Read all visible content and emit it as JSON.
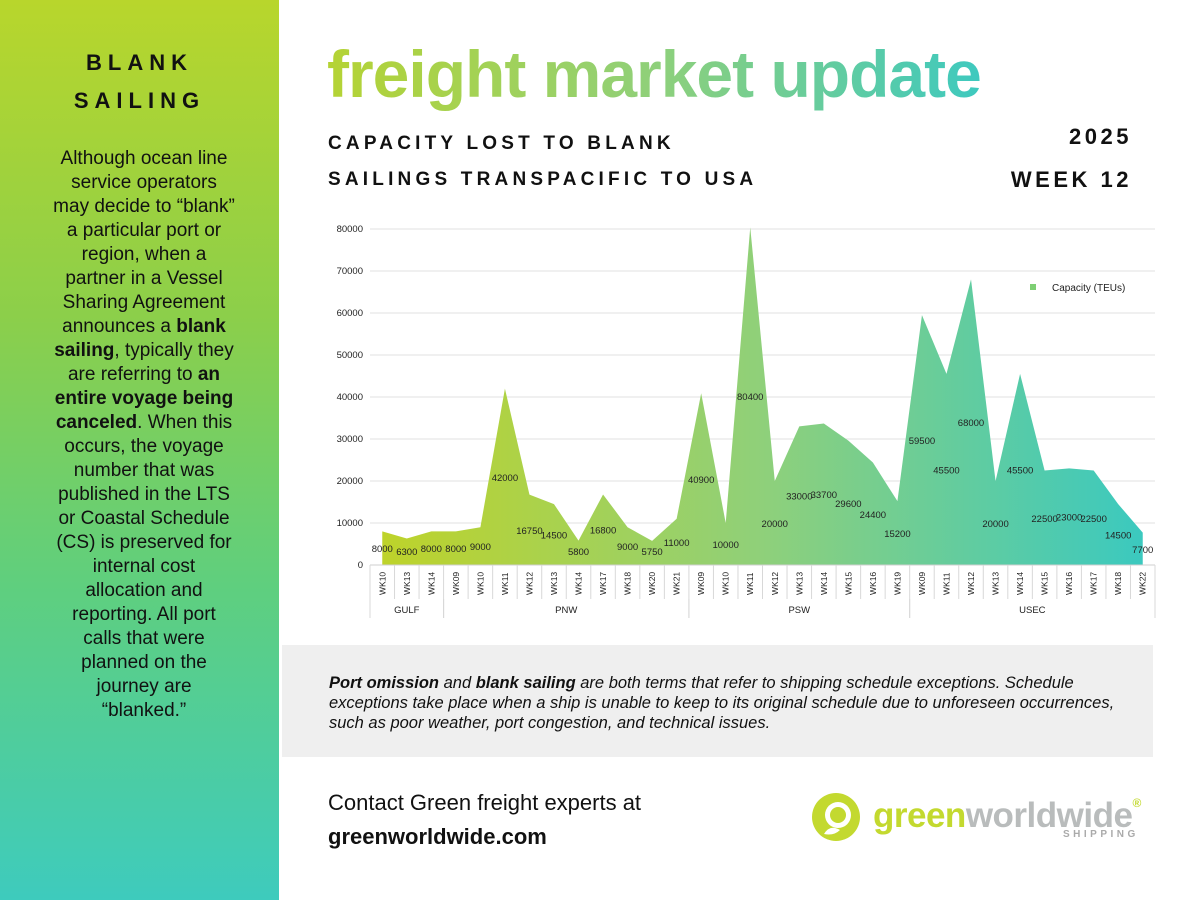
{
  "sidebar": {
    "title_line1": "BLANK",
    "title_line2": "SAILING",
    "body": [
      {
        "text": "Although ocean line service operators may decide to “blank” a particular port or region, when a partner in a Vessel Sharing Agreement announces a ",
        "bold": false
      },
      {
        "text": "blank sailing",
        "bold": true
      },
      {
        "text": ", typically they are referring to ",
        "bold": false
      },
      {
        "text": "an entire voyage being canceled",
        "bold": true
      },
      {
        "text": ". When this occurs, the voyage number that was published in the LTS or Coastal Schedule (CS) is preserved for internal cost allocation and reporting. All port calls that were planned on the journey are “blanked.”",
        "bold": false
      }
    ]
  },
  "header": {
    "title": "freight market update",
    "subtitle_line1": "CAPACITY LOST TO BLANK",
    "subtitle_line2": "SAILINGS TRANSPACIFIC TO USA",
    "year": "2025",
    "week": "WEEK 12"
  },
  "chart_data": {
    "type": "area",
    "series": [
      {
        "name": "Capacity (TEUs)",
        "values": [
          8000,
          6300,
          8000,
          8000,
          9000,
          42000,
          16750,
          14500,
          5800,
          16800,
          9000,
          5750,
          11000,
          40900,
          10000,
          80400,
          20000,
          33000,
          33700,
          29600,
          24400,
          15200,
          59500,
          45500,
          68000,
          20000,
          45500,
          22500,
          23000,
          22500,
          14500,
          7700
        ]
      }
    ],
    "categories": [
      "WK10",
      "WK13",
      "WK14",
      "WK09",
      "WK10",
      "WK11",
      "WK12",
      "WK13",
      "WK14",
      "WK17",
      "WK18",
      "WK20",
      "WK21",
      "WK09",
      "WK10",
      "WK11",
      "WK12",
      "WK13",
      "WK14",
      "WK15",
      "WK16",
      "WK19",
      "WK09",
      "WK11",
      "WK12",
      "WK13",
      "WK14",
      "WK15",
      "WK16",
      "WK17",
      "WK18",
      "WK22"
    ],
    "groups": [
      {
        "label": "GULF",
        "start": 0,
        "count": 3
      },
      {
        "label": "PNW",
        "start": 3,
        "count": 10
      },
      {
        "label": "PSW",
        "start": 13,
        "count": 9
      },
      {
        "label": "USEC",
        "start": 22,
        "count": 10
      }
    ],
    "ylim": [
      0,
      80000
    ],
    "yticks": [
      0,
      10000,
      20000,
      30000,
      40000,
      50000,
      60000,
      70000,
      80000
    ],
    "legend_position": "top-right",
    "grid": true,
    "fill_gradient": [
      "#bed32a",
      "#8fd07a",
      "#3bc9bf"
    ]
  },
  "note": {
    "parts": [
      {
        "text": "Port omission",
        "bold": true
      },
      {
        "text": " and ",
        "bold": false
      },
      {
        "text": "blank sailing",
        "bold": true
      },
      {
        "text": " are both terms that refer to shipping schedule exceptions. Schedule exceptions take place when a ship is unable to keep to its original schedule due to unforeseen occurrences, such as poor weather, port congestion, and technical issues.",
        "bold": false
      }
    ]
  },
  "contact": {
    "line1": "Contact Green freight experts at",
    "url": "greenworldwide.com"
  },
  "logo": {
    "green": "green",
    "world": "worldwide",
    "reg": "®",
    "sub": "SHIPPING"
  }
}
